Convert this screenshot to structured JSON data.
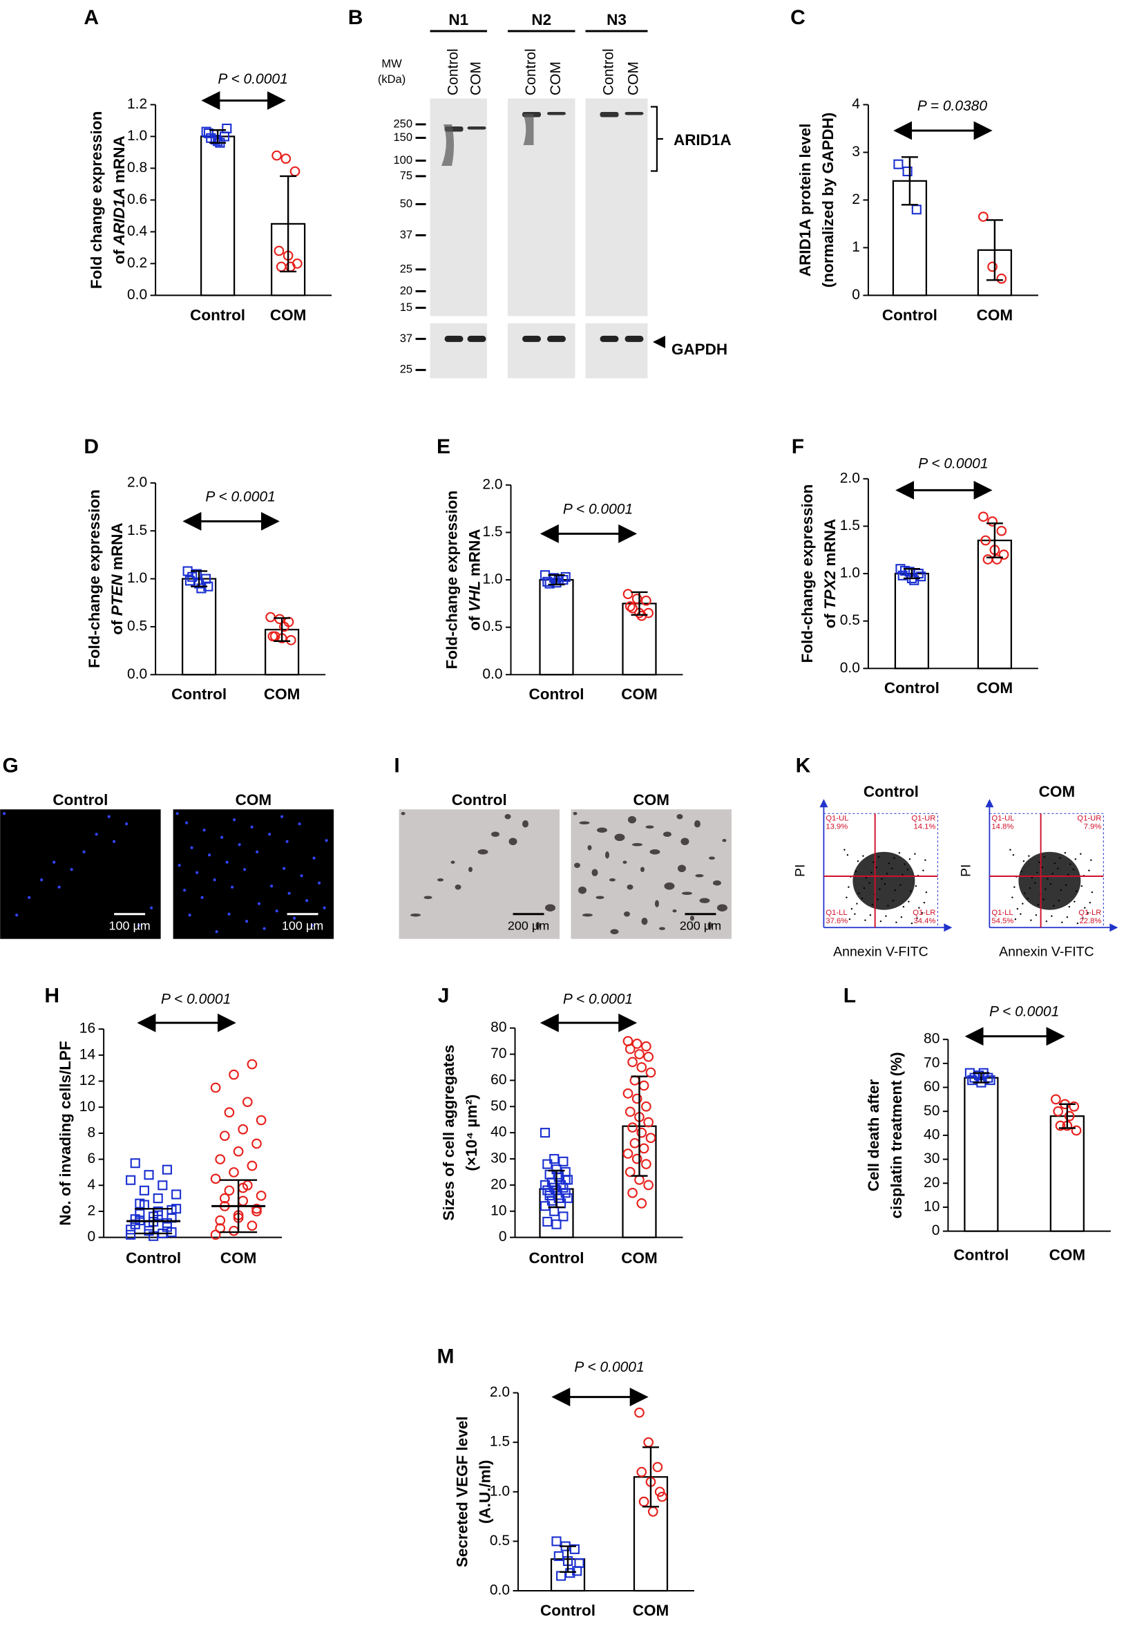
{
  "chart_data": [
    {
      "type": "bar",
      "panel": "A",
      "ylabel": [
        [
          "Fold change expression"
        ],
        [
          "of ",
          "ARID1A",
          " mRNA"
        ]
      ],
      "annotation": "P < 0.0001",
      "categories": [
        "Control",
        "COM"
      ],
      "colors": [
        "#1a2fd0",
        "#e8201c"
      ],
      "markers": [
        "square",
        "circle"
      ],
      "values": [
        1.0,
        0.45
      ],
      "errors": [
        0.04,
        0.3
      ],
      "points": [
        [
          1.03,
          0.98,
          1.0,
          1.02,
          0.97,
          1.05,
          0.99,
          0.96
        ],
        [
          0.88,
          0.86,
          0.78,
          0.28,
          0.25,
          0.2,
          0.18,
          0.18
        ]
      ],
      "ylim": [
        0,
        1.2
      ],
      "yticks": [
        {
          "value": 0,
          "label": "0.0"
        },
        0.2,
        0.4,
        0.6,
        0.8,
        {
          "value": 1,
          "label": "1.0"
        },
        1.2
      ]
    },
    {
      "type": "bar",
      "panel": "C",
      "ylabel": [
        [
          "ARID1A protein level"
        ],
        [
          "(normalized by GAPDH)"
        ]
      ],
      "annotation": "P = 0.0380",
      "categories": [
        "Control",
        "COM"
      ],
      "colors": [
        "#1a2fd0",
        "#e8201c"
      ],
      "markers": [
        "square",
        "circle"
      ],
      "values": [
        2.4,
        0.95
      ],
      "errors": [
        0.5,
        0.63
      ],
      "points": [
        [
          2.75,
          2.6,
          1.8
        ],
        [
          1.65,
          0.6,
          0.35
        ]
      ],
      "ylim": [
        0,
        4
      ],
      "yticks": [
        0,
        1,
        2,
        3,
        4
      ]
    },
    {
      "type": "bar",
      "panel": "D",
      "ylabel": [
        [
          "Fold-change expression"
        ],
        [
          "of ",
          "PTEN",
          " mRNA"
        ]
      ],
      "annotation": "P < 0.0001",
      "categories": [
        "Control",
        "COM"
      ],
      "colors": [
        "#1a2fd0",
        "#e8201c"
      ],
      "markers": [
        "square",
        "circle"
      ],
      "values": [
        1.0,
        0.47
      ],
      "errors": [
        0.08,
        0.12
      ],
      "points": [
        [
          1.08,
          1.05,
          1.0,
          0.98,
          0.95,
          0.92,
          1.02,
          0.9
        ],
        [
          0.6,
          0.58,
          0.55,
          0.4,
          0.38,
          0.36,
          0.4,
          0.5
        ]
      ],
      "ylim": [
        0,
        2
      ],
      "yticks": [
        {
          "value": 0,
          "label": "0.0"
        },
        0.5,
        {
          "value": 1,
          "label": "1.0"
        },
        1.5,
        {
          "value": 2,
          "label": "2.0"
        }
      ]
    },
    {
      "type": "bar",
      "panel": "E",
      "ylabel": [
        [
          "Fold-change expression"
        ],
        [
          "of ",
          "VHL",
          " mRNA"
        ]
      ],
      "annotation": "P < 0.0001",
      "categories": [
        "Control",
        "COM"
      ],
      "colors": [
        "#1a2fd0",
        "#e8201c"
      ],
      "markers": [
        "square",
        "circle"
      ],
      "values": [
        1.0,
        0.75
      ],
      "errors": [
        0.05,
        0.12
      ],
      "points": [
        [
          1.05,
          1.02,
          1.0,
          0.98,
          0.97,
          1.03,
          0.96,
          1.0
        ],
        [
          0.85,
          0.8,
          0.78,
          0.72,
          0.65,
          0.65,
          0.7,
          0.62
        ]
      ],
      "ylim": [
        0,
        2
      ],
      "yticks": [
        {
          "value": 0,
          "label": "0.0"
        },
        0.5,
        {
          "value": 1,
          "label": "1.0"
        },
        1.5,
        {
          "value": 2,
          "label": "2.0"
        }
      ]
    },
    {
      "type": "bar",
      "panel": "F",
      "ylabel": [
        [
          "Fold-change expression"
        ],
        [
          "of ",
          "TPX2",
          " mRNA"
        ]
      ],
      "annotation": "P < 0.0001",
      "categories": [
        "Control",
        "COM"
      ],
      "colors": [
        "#1a2fd0",
        "#e8201c"
      ],
      "markers": [
        "square",
        "circle"
      ],
      "values": [
        1.0,
        1.35
      ],
      "errors": [
        0.05,
        0.18
      ],
      "points": [
        [
          1.05,
          1.02,
          1.0,
          0.98,
          0.95,
          0.97,
          1.03,
          0.93
        ],
        [
          1.6,
          1.55,
          1.45,
          1.35,
          1.25,
          1.2,
          1.15,
          1.15
        ]
      ],
      "ylim": [
        0,
        2
      ],
      "yticks": [
        {
          "value": 0,
          "label": "0.0"
        },
        0.5,
        {
          "value": 1,
          "label": "1.0"
        },
        1.5,
        {
          "value": 2,
          "label": "2.0"
        }
      ]
    },
    {
      "type": "dot",
      "panel": "H",
      "ylabel": [
        [
          "No. of invading cells/LPF"
        ]
      ],
      "annotation": "P < 0.0001",
      "categories": [
        "Control",
        "COM"
      ],
      "colors": [
        "#1a2fd0",
        "#e8201c"
      ],
      "markers": [
        "square",
        "circle"
      ],
      "values": [
        1.25,
        2.4
      ],
      "errors": [
        0.95,
        2.0
      ],
      "points": [
        [
          0.2,
          0.5,
          0.8,
          1.0,
          1.2,
          1.5,
          1.8,
          2.0,
          2.2,
          2.5,
          0.3,
          0.6,
          0.9,
          1.1,
          1.4,
          1.6,
          2.1,
          2.6,
          3.0,
          3.3,
          3.6,
          4.0,
          4.4,
          4.8,
          5.2,
          5.7,
          0.1,
          0.4,
          1.3,
          1.7
        ],
        [
          0.2,
          0.5,
          0.9,
          1.3,
          1.7,
          2.0,
          2.4,
          2.8,
          3.2,
          3.6,
          4.0,
          4.5,
          5.0,
          5.5,
          6.0,
          6.6,
          7.2,
          7.8,
          8.3,
          9.0,
          9.6,
          10.4,
          11.5,
          12.5,
          13.3,
          0.7,
          1.5,
          2.2,
          3.0,
          3.8
        ]
      ],
      "ylim": [
        0,
        16
      ],
      "yticks": [
        0,
        2,
        4,
        6,
        8,
        10,
        12,
        14,
        16
      ]
    },
    {
      "type": "bar",
      "panel": "J",
      "ylabel": [
        [
          "Sizes of cell aggregates"
        ],
        [
          "(×10⁴ µm²)"
        ]
      ],
      "annotation": "P < 0.0001",
      "categories": [
        "Control",
        "COM"
      ],
      "colors": [
        "#1a2fd0",
        "#e8201c"
      ],
      "markers": [
        "square",
        "circle"
      ],
      "values": [
        18.5,
        42.5
      ],
      "errors": [
        7,
        19
      ],
      "points": [
        [
          40,
          30,
          29,
          28,
          26,
          25,
          24,
          23,
          22,
          21,
          20,
          20,
          19,
          19,
          18,
          18,
          17,
          16,
          15,
          15,
          14,
          13,
          12,
          10,
          8,
          6,
          5,
          22,
          17,
          24
        ],
        [
          75,
          74,
          73,
          72,
          70,
          69,
          67,
          65,
          63,
          60,
          58,
          55,
          53,
          50,
          48,
          46,
          44,
          42,
          40,
          38,
          36,
          34,
          32,
          30,
          28,
          25,
          22,
          20,
          17,
          13
        ]
      ],
      "ylim": [
        0,
        80
      ],
      "yticks": [
        0,
        10,
        20,
        30,
        40,
        50,
        60,
        70,
        80
      ]
    },
    {
      "type": "bar",
      "panel": "L",
      "ylabel": [
        [
          "Cell death after"
        ],
        [
          "cisplatin treatment (%)"
        ]
      ],
      "annotation": "P < 0.0001",
      "categories": [
        "Control",
        "COM"
      ],
      "colors": [
        "#1a2fd0",
        "#e8201c"
      ],
      "markers": [
        "square",
        "circle"
      ],
      "values": [
        64,
        48
      ],
      "errors": [
        2,
        5
      ],
      "points": [
        [
          66,
          65,
          64,
          63,
          62,
          63,
          64,
          66
        ],
        [
          55,
          53,
          52,
          50,
          44,
          42,
          44,
          48
        ]
      ],
      "ylim": [
        0,
        80
      ],
      "yticks": [
        0,
        10,
        20,
        30,
        40,
        50,
        60,
        70,
        80
      ]
    },
    {
      "type": "bar",
      "panel": "M",
      "ylabel": [
        [
          "Secreted VEGF level"
        ],
        [
          "(A.U./ml)"
        ]
      ],
      "annotation": "P < 0.0001",
      "categories": [
        "Control",
        "COM"
      ],
      "colors": [
        "#1a2fd0",
        "#e8201c"
      ],
      "markers": [
        "square",
        "circle"
      ],
      "values": [
        0.32,
        1.15
      ],
      "errors": [
        0.13,
        0.3
      ],
      "points": [
        [
          0.5,
          0.45,
          0.42,
          0.35,
          0.3,
          0.2,
          0.15,
          0.18,
          0.28
        ],
        [
          1.8,
          1.5,
          1.25,
          1.2,
          1.1,
          1.0,
          0.9,
          0.8,
          0.95
        ]
      ],
      "ylim": [
        0,
        2
      ],
      "yticks": [
        {
          "value": 0,
          "label": "0.0"
        },
        0.5,
        {
          "value": 1,
          "label": "1.0"
        },
        1.5,
        {
          "value": 2,
          "label": "2.0"
        }
      ]
    }
  ],
  "panels": {
    "B": {
      "letter": "B",
      "groups": [
        "N1",
        "N2",
        "N3"
      ],
      "lanes": [
        "Control",
        "COM"
      ],
      "mw_title": [
        "MW",
        "(kDa)"
      ],
      "mw_top": [
        "250",
        "150",
        "100",
        "75",
        "50",
        "37",
        "25",
        "20",
        "15"
      ],
      "mw_bottom": [
        "37",
        "25"
      ],
      "targets": [
        "ARID1A",
        "GAPDH"
      ]
    },
    "G": {
      "letter": "G",
      "images": [
        "Control",
        "COM"
      ],
      "scale": "100 µm"
    },
    "I": {
      "letter": "I",
      "images": [
        "Control",
        "COM"
      ],
      "scale": "200 µm"
    },
    "K": {
      "letter": "K",
      "xlabel": "Annexin V-FITC",
      "ylabel": "PI",
      "plots": [
        {
          "title": "Control",
          "quadrants": [
            [
              "Q1-UL",
              "13.9%"
            ],
            [
              "Q1-UR",
              "14.1%"
            ],
            [
              "Q1-LL",
              "37.6%"
            ],
            [
              "Q1-LR",
              "34.4%"
            ]
          ]
        },
        {
          "title": "COM",
          "quadrants": [
            [
              "Q1-UL",
              "14.8%"
            ],
            [
              "Q1-UR",
              "7.9%"
            ],
            [
              "Q1-LL",
              "54.5%"
            ],
            [
              "Q1-LR",
              "22.8%"
            ]
          ]
        }
      ]
    }
  }
}
